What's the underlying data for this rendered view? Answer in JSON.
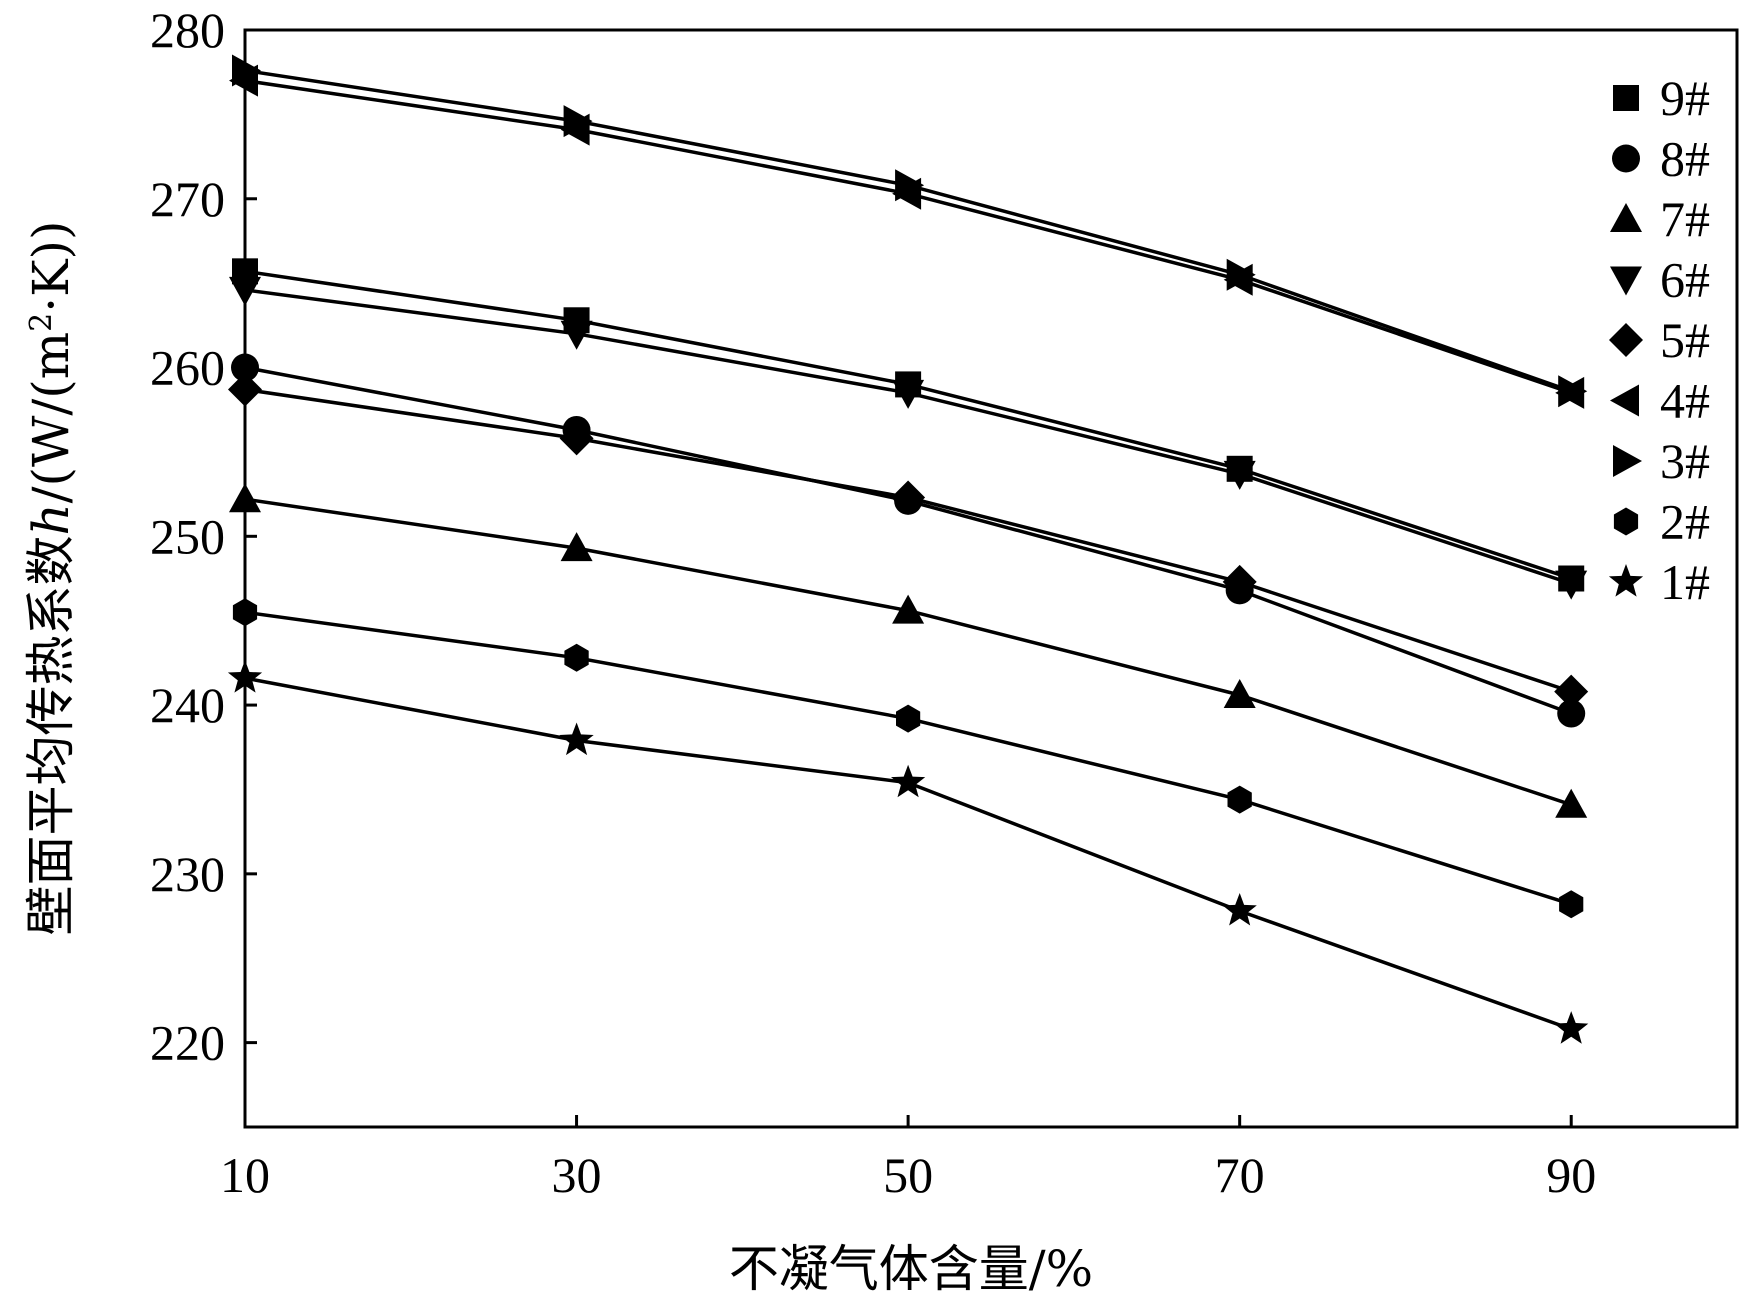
{
  "chart_data": {
    "type": "line",
    "title": "",
    "xlabel": "不凝气体含量/%",
    "ylabel": "壁面平均传热系数",
    "ylabel_var": "h",
    "ylabel_unit_prefix": "/(W/(m",
    "ylabel_unit_sup": "2",
    "ylabel_unit_suffix": "·K))",
    "x": [
      10,
      30,
      50,
      70,
      90
    ],
    "xticks": [
      "10",
      "30",
      "50",
      "70",
      "90"
    ],
    "yticks": [
      "220",
      "230",
      "240",
      "250",
      "260",
      "270",
      "280"
    ],
    "xlim": [
      10,
      100
    ],
    "ylim": [
      215,
      280
    ],
    "grid": false,
    "legend_position": "top-right",
    "series": [
      {
        "name": "9#",
        "marker": "square",
        "values": [
          265.7,
          262.8,
          259.0,
          254.0,
          247.5
        ]
      },
      {
        "name": "8#",
        "marker": "circle",
        "values": [
          260.0,
          256.3,
          252.1,
          246.8,
          239.5
        ]
      },
      {
        "name": "7#",
        "marker": "triangle-up",
        "values": [
          252.2,
          249.3,
          245.6,
          240.6,
          234.1
        ]
      },
      {
        "name": "6#",
        "marker": "triangle-down",
        "values": [
          264.6,
          262.0,
          258.5,
          253.7,
          247.2
        ]
      },
      {
        "name": "5#",
        "marker": "diamond",
        "values": [
          258.7,
          255.8,
          252.3,
          247.3,
          240.8
        ]
      },
      {
        "name": "4#",
        "marker": "triangle-left",
        "values": [
          277.0,
          274.1,
          270.3,
          265.2,
          258.5
        ]
      },
      {
        "name": "3#",
        "marker": "triangle-right",
        "values": [
          277.6,
          274.6,
          270.8,
          265.5,
          258.6
        ]
      },
      {
        "name": "2#",
        "marker": "hexagon",
        "values": [
          245.5,
          242.8,
          239.2,
          234.4,
          228.2
        ]
      },
      {
        "name": "1#",
        "marker": "star",
        "values": [
          241.6,
          237.9,
          235.4,
          227.8,
          220.8
        ]
      }
    ]
  }
}
